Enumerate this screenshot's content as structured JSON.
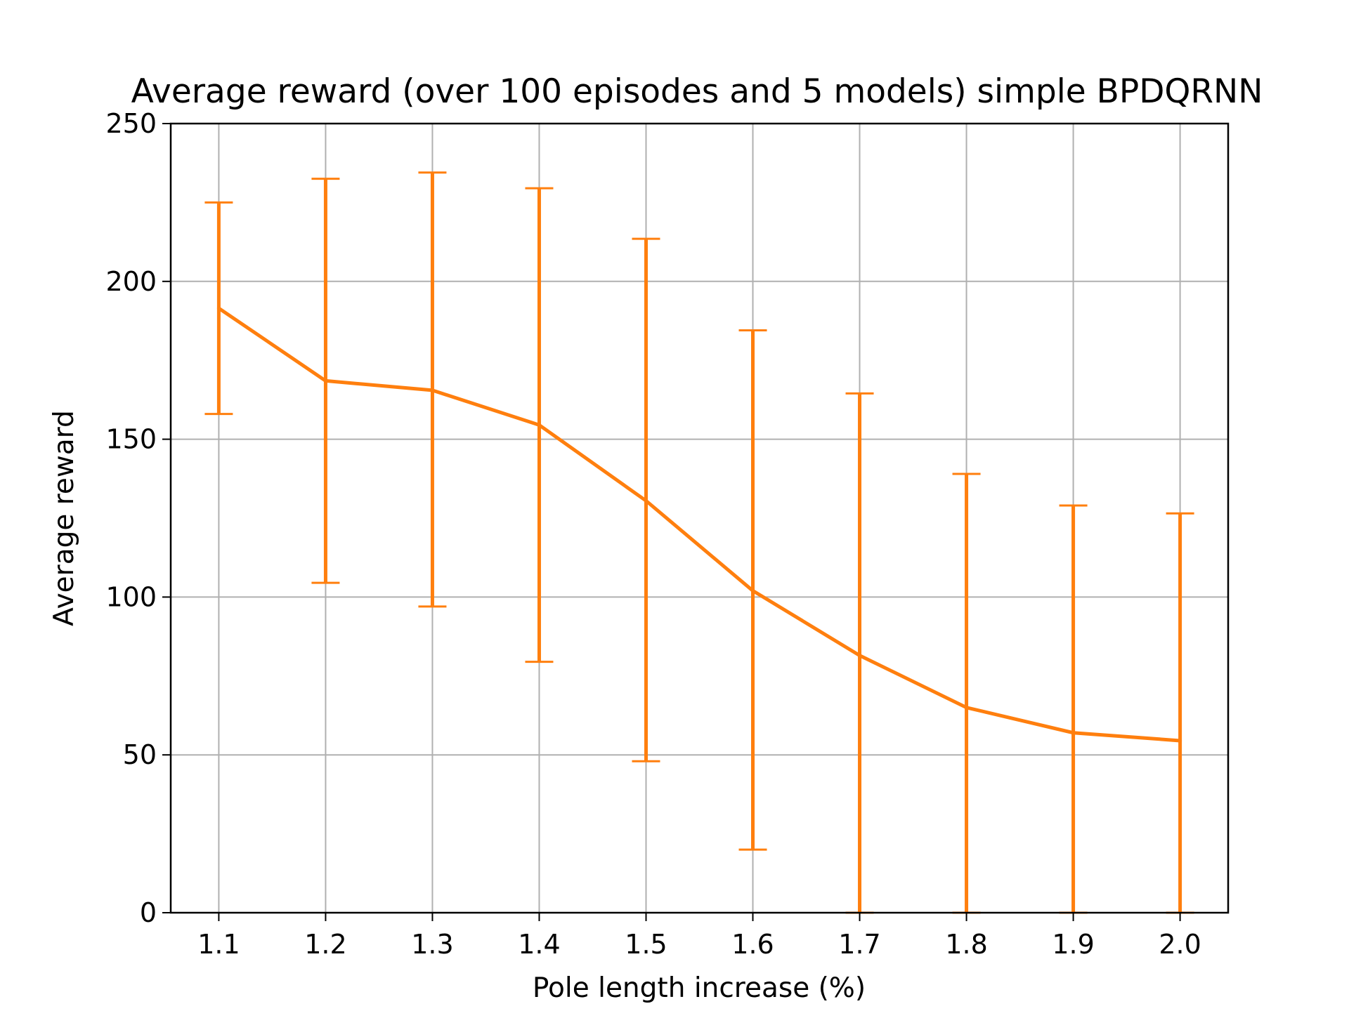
{
  "chart_data": {
    "type": "line",
    "title": "Average reward (over 100 episodes and 5 models) simple BPDQRNN",
    "xlabel": "Pole length increase (%)",
    "ylabel": "Average reward",
    "xlim": [
      1.055,
      2.045
    ],
    "ylim": [
      0,
      250
    ],
    "x_ticks": [
      "1.1",
      "1.2",
      "1.3",
      "1.4",
      "1.5",
      "1.6",
      "1.7",
      "1.8",
      "1.9",
      "2.0"
    ],
    "y_ticks": [
      "0",
      "50",
      "100",
      "150",
      "200",
      "250"
    ],
    "grid": true,
    "series": [
      {
        "color": "#ff7f0e",
        "x": [
          1.1,
          1.2,
          1.3,
          1.4,
          1.5,
          1.6,
          1.7,
          1.8,
          1.9,
          2.0
        ],
        "y": [
          191.5,
          168.5,
          165.5,
          154.5,
          130.5,
          102,
          81.5,
          65,
          57,
          54.5
        ],
        "error_upper": [
          225,
          232.5,
          234.5,
          229.5,
          213.5,
          184.5,
          164.5,
          139,
          129,
          126.5
        ],
        "error_lower": [
          158,
          104.5,
          97,
          79.5,
          48,
          20,
          0,
          0,
          0,
          0
        ]
      }
    ]
  }
}
